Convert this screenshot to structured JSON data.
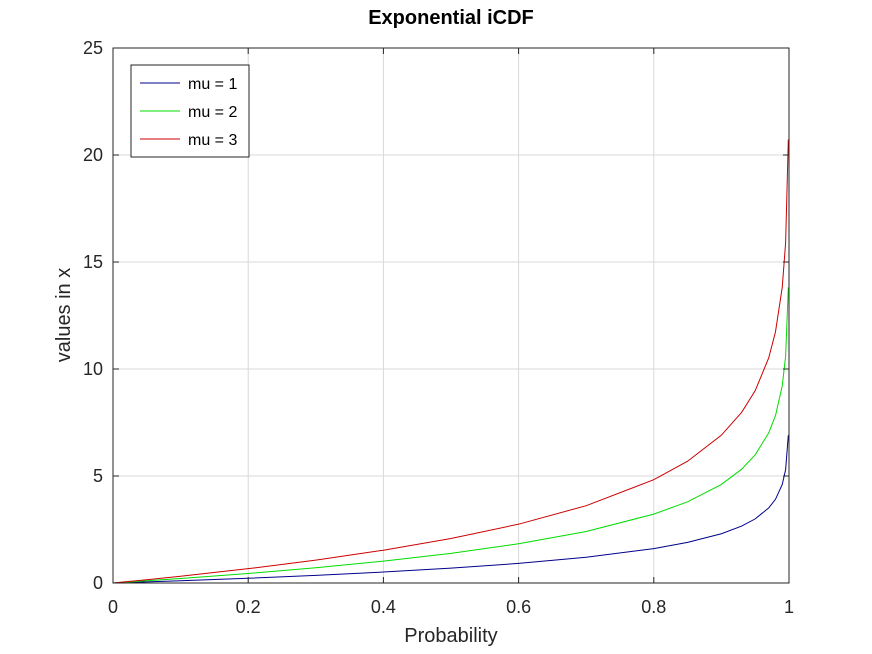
{
  "chart_data": {
    "type": "line",
    "title": "Exponential iCDF",
    "xlabel": "Probability",
    "ylabel": "values in x",
    "xlim": [
      0,
      1
    ],
    "ylim": [
      0,
      25
    ],
    "x_ticks": [
      0,
      0.2,
      0.4,
      0.6,
      0.8,
      1
    ],
    "x_tick_labels": [
      "0",
      "0.2",
      "0.4",
      "0.6",
      "0.8",
      "1"
    ],
    "y_ticks": [
      0,
      5,
      10,
      15,
      20,
      25
    ],
    "y_tick_labels": [
      "0",
      "5",
      "10",
      "15",
      "20",
      "25"
    ],
    "grid": true,
    "legend_position": "top-left",
    "x": [
      0,
      0.05,
      0.1,
      0.2,
      0.3,
      0.4,
      0.5,
      0.6,
      0.7,
      0.8,
      0.85,
      0.9,
      0.93,
      0.95,
      0.97,
      0.98,
      0.99,
      0.995,
      0.999
    ],
    "series": [
      {
        "name": "mu = 1",
        "color": "#00008b",
        "values": [
          0,
          0.051,
          0.105,
          0.223,
          0.357,
          0.511,
          0.693,
          0.916,
          1.204,
          1.609,
          1.897,
          2.303,
          2.659,
          2.996,
          3.507,
          3.912,
          4.605,
          5.298,
          6.908
        ]
      },
      {
        "name": "mu = 2",
        "color": "#00dd00",
        "values": [
          0,
          0.103,
          0.211,
          0.446,
          0.713,
          1.022,
          1.386,
          1.833,
          2.408,
          3.219,
          3.794,
          4.605,
          5.318,
          5.991,
          7.013,
          7.824,
          9.21,
          10.597,
          13.816
        ]
      },
      {
        "name": "mu = 3",
        "color": "#cc0000",
        "values": [
          0,
          0.154,
          0.316,
          0.669,
          1.07,
          1.532,
          2.079,
          2.749,
          3.612,
          4.828,
          5.691,
          6.908,
          7.977,
          8.987,
          10.52,
          11.736,
          13.816,
          15.895,
          20.723
        ]
      }
    ]
  }
}
